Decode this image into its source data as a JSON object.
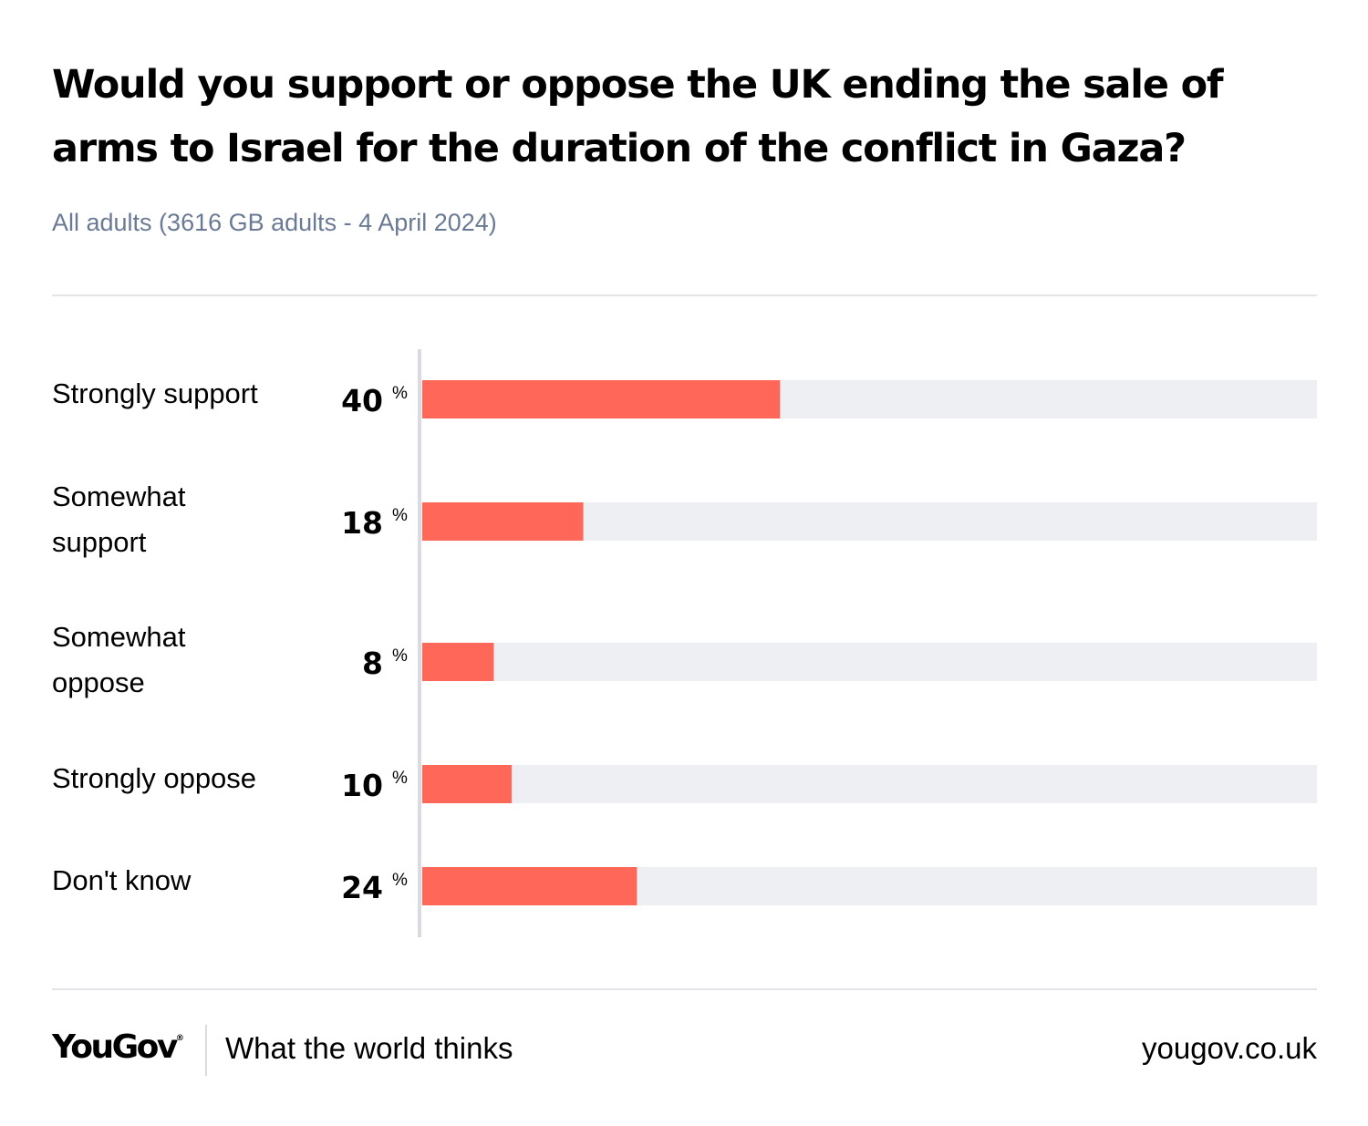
{
  "header": {
    "title": "Would you support or oppose the UK ending the sale of arms to Israel for the duration of the conflict in Gaza?",
    "subtitle": "All adults (3616 GB adults - 4 April 2024)"
  },
  "chart_data": {
    "type": "bar",
    "orientation": "horizontal",
    "title": "Would you support or oppose the UK ending the sale of arms to Israel for the duration of the conflict in Gaza?",
    "subtitle": "All adults (3616 GB adults - 4 April 2024)",
    "categories": [
      "Strongly support",
      "Somewhat support",
      "Somewhat oppose",
      "Strongly oppose",
      "Don't know"
    ],
    "category_lines": [
      [
        "Strongly support"
      ],
      [
        "Somewhat",
        "support"
      ],
      [
        "Somewhat",
        "oppose"
      ],
      [
        "Strongly oppose"
      ],
      [
        "Don't know"
      ]
    ],
    "values": [
      40,
      18,
      8,
      10,
      24
    ],
    "unit": "%",
    "xlim": [
      0,
      100
    ],
    "grid": false,
    "colors": {
      "bar": "#ff6859",
      "track": "#eeeff3",
      "axis": "#d9dbe0"
    }
  },
  "footer": {
    "logo": "YouGov",
    "registered_mark": "®",
    "tagline": "What the world thinks",
    "website": "yougov.co.uk"
  }
}
